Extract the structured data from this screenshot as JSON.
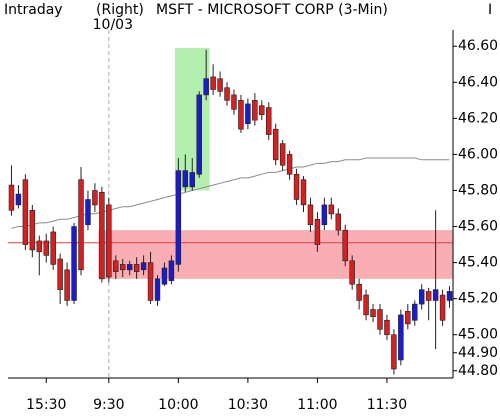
{
  "chart_data": {
    "type": "candlestick",
    "header": [
      "Intraday",
      "(Right)",
      "MSFT - MICROSOFT CORP (3-Min)",
      "I"
    ],
    "date_label": "10/03",
    "categories": [
      null,
      null,
      null,
      null,
      null,
      "15:30",
      null,
      null,
      null,
      null,
      null,
      null,
      null,
      null,
      "9:30",
      null,
      null,
      null,
      null,
      null,
      null,
      null,
      null,
      null,
      "10:00",
      null,
      null,
      null,
      null,
      null,
      null,
      null,
      null,
      null,
      "10:30",
      null,
      null,
      null,
      null,
      null,
      null,
      null,
      null,
      null,
      "11:00",
      null,
      null,
      null,
      null,
      null,
      null,
      null,
      null,
      null,
      "11:30",
      null,
      null,
      null,
      null,
      null,
      null,
      null,
      null,
      null
    ],
    "open": [
      45.83,
      45.72,
      45.86,
      45.69,
      45.52,
      45.52,
      45.57,
      45.42,
      45.36,
      45.19,
      45.86,
      45.61,
      45.8,
      45.79,
      45.72,
      45.41,
      45.39,
      45.36,
      45.39,
      45.36,
      45.4,
      45.19,
      45.28,
      45.3,
      45.39,
      45.82,
      45.82,
      45.89,
      46.33,
      46.43,
      46.42,
      46.37,
      46.33,
      46.3,
      46.17,
      46.3,
      46.27,
      46.26,
      46.14,
      46.06,
      46.0,
      45.89,
      45.86,
      45.72,
      45.64,
      45.61,
      45.72,
      45.67,
      45.58,
      45.41,
      45.28,
      45.22,
      45.14,
      45.14,
      45.08,
      45.0,
      44.86,
      45.13,
      45.08,
      45.17,
      45.24,
      45.19,
      45.22,
      45.19
    ],
    "high": [
      45.94,
      45.83,
      45.89,
      45.72,
      45.55,
      45.56,
      45.6,
      45.45,
      45.4,
      45.62,
      45.93,
      45.8,
      45.84,
      45.82,
      45.76,
      45.44,
      45.42,
      45.41,
      45.43,
      45.44,
      45.46,
      45.33,
      45.4,
      45.44,
      45.98,
      46.0,
      45.98,
      46.35,
      46.58,
      46.5,
      46.46,
      46.4,
      46.36,
      46.33,
      46.31,
      46.34,
      46.3,
      46.29,
      46.17,
      46.08,
      46.02,
      45.92,
      45.88,
      45.76,
      45.68,
      45.76,
      45.76,
      45.7,
      45.61,
      45.44,
      45.31,
      45.25,
      45.17,
      45.17,
      45.11,
      45.03,
      45.14,
      45.17,
      45.19,
      45.28,
      45.26,
      45.69,
      45.25,
      45.27
    ],
    "low": [
      45.66,
      45.7,
      45.47,
      45.43,
      45.33,
      45.4,
      45.36,
      45.17,
      45.16,
      45.17,
      45.33,
      45.58,
      45.68,
      45.29,
      45.29,
      45.31,
      45.32,
      45.33,
      45.31,
      45.33,
      45.17,
      45.16,
      45.27,
      45.28,
      45.35,
      45.79,
      45.8,
      45.87,
      46.3,
      46.33,
      46.32,
      46.27,
      46.22,
      46.12,
      46.14,
      46.16,
      46.19,
      46.08,
      45.94,
      45.91,
      45.86,
      45.72,
      45.68,
      45.57,
      45.46,
      45.58,
      45.64,
      45.55,
      45.38,
      45.25,
      45.14,
      45.08,
      45.07,
      45.0,
      44.97,
      44.78,
      44.83,
      45.03,
      45.05,
      45.14,
      45.08,
      44.92,
      45.05,
      45.15
    ],
    "close": [
      45.69,
      45.78,
      45.5,
      45.47,
      45.46,
      45.44,
      45.39,
      45.25,
      45.19,
      45.6,
      45.36,
      45.75,
      45.72,
      45.31,
      45.32,
      45.35,
      45.36,
      45.39,
      45.35,
      45.4,
      45.19,
      45.31,
      45.37,
      45.41,
      45.91,
      45.91,
      45.9,
      46.33,
      46.42,
      46.36,
      46.35,
      46.3,
      46.25,
      46.14,
      46.28,
      46.19,
      46.22,
      46.11,
      45.97,
      45.94,
      45.89,
      45.75,
      45.72,
      45.61,
      45.5,
      45.72,
      45.67,
      45.58,
      45.41,
      45.28,
      45.19,
      45.11,
      45.1,
      45.03,
      45.0,
      44.81,
      45.11,
      45.06,
      45.17,
      45.25,
      45.19,
      45.25,
      45.08,
      45.24
    ],
    "up_color": "#1c1cc8",
    "down_color": "#d42020",
    "lines": [
      {
        "color": "#8a8a8a",
        "values": [
          45.59,
          45.6,
          45.6,
          45.61,
          45.62,
          45.62,
          45.63,
          45.64,
          45.64,
          45.65,
          45.66,
          45.67,
          45.67,
          45.68,
          45.69,
          45.7,
          45.71,
          45.71,
          45.72,
          45.73,
          45.74,
          45.75,
          45.76,
          45.77,
          45.78,
          45.79,
          45.8,
          45.81,
          45.82,
          45.83,
          45.84,
          45.85,
          45.86,
          45.87,
          45.87,
          45.88,
          45.89,
          45.9,
          45.9,
          45.91,
          45.92,
          45.93,
          45.93,
          45.94,
          45.95,
          45.95,
          45.96,
          45.96,
          45.97,
          45.97,
          45.97,
          45.98,
          45.98,
          45.98,
          45.98,
          45.98,
          45.98,
          45.98,
          45.98,
          45.97,
          45.97,
          45.97,
          45.97,
          45.97
        ]
      }
    ],
    "hlines": [
      {
        "value": 45.51,
        "color": "#e04040"
      }
    ],
    "zones": [
      {
        "x": [
          13,
          63
        ],
        "y": [
          45.31,
          45.58
        ],
        "color": "#f7a0a4"
      },
      {
        "x": [
          24,
          28
        ],
        "y": [
          45.8,
          46.59
        ],
        "color": "#a6eca0"
      }
    ],
    "ylim": [
      44.76,
      46.69
    ],
    "yticks": [
      {
        "value": 44.8,
        "label": "44.80"
      },
      {
        "value": 44.9,
        "label": "44.90"
      },
      {
        "value": 45,
        "label": "45.00"
      },
      {
        "value": 45.2,
        "label": "45.20"
      },
      {
        "value": 45.4,
        "label": "45.40"
      },
      {
        "value": 45.6,
        "label": "45.60"
      },
      {
        "value": 45.8,
        "label": "45.80"
      },
      {
        "value": 46,
        "label": "46.00"
      },
      {
        "value": 46.2,
        "label": "46.20"
      },
      {
        "value": 46.4,
        "label": "46.40"
      },
      {
        "value": 46.6,
        "label": "46.60"
      }
    ]
  }
}
